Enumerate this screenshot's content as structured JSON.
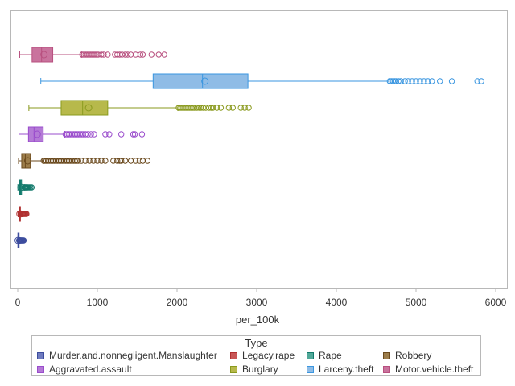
{
  "chart_data": {
    "type": "boxplot",
    "orientation": "horizontal",
    "xlabel": "per_100k",
    "xlim": [
      0,
      6000
    ],
    "xticks": [
      0,
      1000,
      2000,
      3000,
      4000,
      5000,
      6000
    ],
    "legend": {
      "title": "Type",
      "placement": "bottom"
    },
    "series": [
      {
        "name": "Murder.and.nonnegligent.Manslaughter",
        "color": "#6f7bbf",
        "stroke": "#3d4d9e",
        "min": 0,
        "q1": 2,
        "median": 5,
        "q3": 8,
        "max": 16,
        "mean": 6,
        "outliers": [
          17,
          19,
          22,
          25,
          28,
          31,
          35,
          40,
          45,
          52,
          60,
          68,
          75
        ]
      },
      {
        "name": "Legacy.rape",
        "color": "#c85656",
        "stroke": "#b03030",
        "min": 5,
        "q1": 18,
        "median": 25,
        "q3": 34,
        "max": 55,
        "mean": 28,
        "outliers": [
          56,
          60,
          66,
          72,
          80,
          90,
          100,
          110
        ]
      },
      {
        "name": "Rape",
        "color": "#50a898",
        "stroke": "#137a6c",
        "min": 2,
        "q1": 25,
        "median": 35,
        "q3": 48,
        "max": 80,
        "mean": 40,
        "outliers": [
          82,
          88,
          95,
          102,
          110,
          120,
          130,
          145,
          160,
          175
        ]
      },
      {
        "name": "Robbery",
        "color": "#9c7d4b",
        "stroke": "#6b4a1e",
        "min": 10,
        "q1": 50,
        "median": 95,
        "q3": 160,
        "max": 320,
        "mean": 125,
        "outliers": [
          325,
          340,
          360,
          380,
          400,
          420,
          440,
          460,
          480,
          500,
          520,
          540,
          560,
          580,
          600,
          620,
          640,
          660,
          680,
          700,
          720,
          740,
          760,
          800,
          850,
          900,
          950,
          1000,
          1050,
          1100,
          1200,
          1250,
          1280,
          1300,
          1350,
          1420,
          1480,
          1530,
          1570,
          1630
        ]
      },
      {
        "name": "Aggravated.assault",
        "color": "#b47ad6",
        "stroke": "#9a4ccc",
        "min": 15,
        "q1": 135,
        "median": 205,
        "q3": 320,
        "max": 590,
        "mean": 245,
        "outliers": [
          600,
          620,
          640,
          660,
          680,
          700,
          720,
          740,
          760,
          780,
          800,
          820,
          850,
          880,
          920,
          960,
          1100,
          1150,
          1300,
          1450,
          1470,
          1560
        ]
      },
      {
        "name": "Burglary",
        "color": "#b7b94b",
        "stroke": "#8a9a1e",
        "min": 140,
        "q1": 545,
        "median": 815,
        "q3": 1130,
        "max": 2010,
        "mean": 890,
        "outliers": [
          2020,
          2040,
          2060,
          2080,
          2100,
          2120,
          2140,
          2160,
          2180,
          2200,
          2220,
          2250,
          2280,
          2300,
          2330,
          2360,
          2400,
          2430,
          2450,
          2500,
          2550,
          2650,
          2700,
          2800,
          2850,
          2900
        ]
      },
      {
        "name": "Larceny.theft",
        "color": "#8fbce6",
        "stroke": "#3a96e0",
        "min": 290,
        "q1": 1700,
        "median": 2320,
        "q3": 2890,
        "max": 4660,
        "mean": 2350,
        "outliers": [
          4670,
          4690,
          4710,
          4730,
          4750,
          4780,
          4810,
          4860,
          4900,
          4950,
          5000,
          5050,
          5100,
          5150,
          5200,
          5300,
          5450,
          5770,
          5820
        ]
      },
      {
        "name": "Motor.vehicle.theft",
        "color": "#c9739d",
        "stroke": "#b8507f",
        "min": 25,
        "q1": 180,
        "median": 300,
        "q3": 440,
        "max": 800,
        "mean": 330,
        "outliers": [
          810,
          830,
          850,
          870,
          890,
          910,
          930,
          950,
          970,
          990,
          1010,
          1050,
          1080,
          1130,
          1220,
          1250,
          1280,
          1310,
          1350,
          1380,
          1420,
          1480,
          1540,
          1570,
          1680,
          1770,
          1840
        ]
      }
    ]
  },
  "legend_layout": [
    [
      "Murder.and.nonnegligent.Manslaughter",
      "Legacy.rape",
      "Rape",
      "Robbery"
    ],
    [
      "Aggravated.assault",
      "Burglary",
      "Larceny.theft",
      "Motor.vehicle.theft"
    ]
  ]
}
